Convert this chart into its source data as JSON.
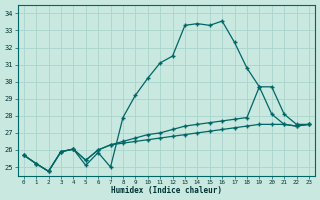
{
  "xlabel": "Humidex (Indice chaleur)",
  "xlim": [
    -0.5,
    23.5
  ],
  "ylim": [
    24.5,
    34.5
  ],
  "xticks": [
    0,
    1,
    2,
    3,
    4,
    5,
    6,
    7,
    8,
    9,
    10,
    11,
    12,
    13,
    14,
    15,
    16,
    17,
    18,
    19,
    20,
    21,
    22,
    23
  ],
  "yticks": [
    25,
    26,
    27,
    28,
    29,
    30,
    31,
    32,
    33,
    34
  ],
  "bg_color": "#c8e8e0",
  "grid_color": "#aad4cc",
  "line_color": "#006666",
  "lines": [
    {
      "x": [
        0,
        1,
        2,
        3,
        4,
        5,
        6,
        7,
        8,
        9,
        10,
        11,
        12,
        13,
        14,
        15,
        16,
        17,
        18,
        19,
        20,
        21,
        22,
        23
      ],
      "y": [
        25.7,
        25.2,
        24.75,
        25.9,
        26.05,
        25.1,
        25.85,
        25.0,
        27.9,
        29.2,
        30.2,
        31.1,
        31.5,
        33.3,
        33.4,
        33.3,
        33.55,
        32.3,
        30.8,
        29.7,
        28.1,
        27.5,
        27.4,
        27.5
      ]
    },
    {
      "x": [
        0,
        1,
        2,
        3,
        4,
        5,
        6,
        7,
        8,
        9,
        10,
        11,
        12,
        13,
        14,
        15,
        16,
        17,
        18,
        19,
        20,
        21,
        22,
        23
      ],
      "y": [
        25.7,
        25.2,
        24.75,
        25.9,
        26.05,
        25.4,
        26.0,
        26.3,
        26.5,
        26.7,
        26.9,
        27.0,
        27.2,
        27.4,
        27.5,
        27.6,
        27.7,
        27.8,
        27.9,
        29.7,
        29.7,
        28.1,
        27.5,
        27.5
      ]
    },
    {
      "x": [
        0,
        1,
        2,
        3,
        4,
        5,
        6,
        7,
        8,
        9,
        10,
        11,
        12,
        13,
        14,
        15,
        16,
        17,
        18,
        19,
        20,
        21,
        22,
        23
      ],
      "y": [
        25.7,
        25.2,
        24.75,
        25.9,
        26.05,
        25.4,
        26.0,
        26.3,
        26.4,
        26.5,
        26.6,
        26.7,
        26.8,
        26.9,
        27.0,
        27.1,
        27.2,
        27.3,
        27.4,
        27.5,
        27.5,
        27.5,
        27.4,
        27.5
      ]
    }
  ]
}
